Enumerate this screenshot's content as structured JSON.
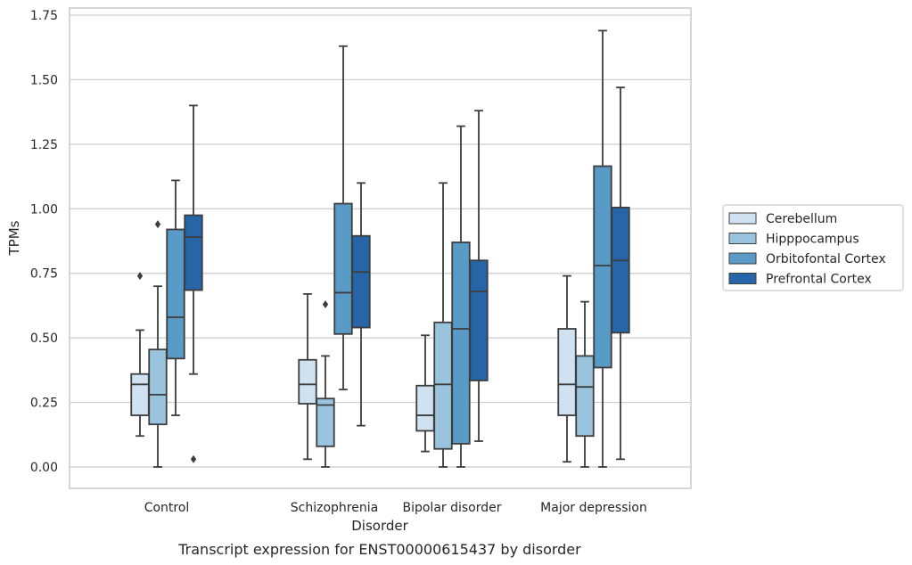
{
  "chart_data": {
    "type": "box",
    "xlabel": "Disorder",
    "ylabel": "TPMs",
    "caption": "Transcript expression for ENST00000615437 by disorder",
    "ylim": [
      -0.08,
      1.77
    ],
    "yticks": [
      "0.00",
      "0.25",
      "0.50",
      "0.75",
      "1.00",
      "1.25",
      "1.50",
      "1.75"
    ],
    "ytick_values": [
      0,
      0.25,
      0.5,
      0.75,
      1.0,
      1.25,
      1.5,
      1.75
    ],
    "grid": true,
    "legend_position": "right",
    "categories": [
      "Control",
      "Schizophrenia",
      "Bipolar disorder",
      "Major depression"
    ],
    "series": [
      {
        "name": "Cerebellum",
        "color": "#d0e1f2",
        "boxes": [
          {
            "whislo": 0.12,
            "q1": 0.2,
            "med": 0.32,
            "q3": 0.36,
            "whishi": 0.53,
            "fliers": [
              0.74
            ]
          },
          {
            "whislo": 0.03,
            "q1": 0.245,
            "med": 0.32,
            "q3": 0.415,
            "whishi": 0.67,
            "fliers": []
          },
          {
            "whislo": 0.06,
            "q1": 0.14,
            "med": 0.2,
            "q3": 0.315,
            "whishi": 0.51,
            "fliers": []
          },
          {
            "whislo": 0.02,
            "q1": 0.2,
            "med": 0.32,
            "q3": 0.535,
            "whishi": 0.74,
            "fliers": []
          }
        ]
      },
      {
        "name": "Hipppocampus",
        "color": "#9ac4de",
        "boxes": [
          {
            "whislo": 0.0,
            "q1": 0.165,
            "med": 0.28,
            "q3": 0.455,
            "whishi": 0.7,
            "fliers": [
              0.94
            ]
          },
          {
            "whislo": 0.0,
            "q1": 0.08,
            "med": 0.24,
            "q3": 0.265,
            "whishi": 0.43,
            "fliers": [
              0.63
            ]
          },
          {
            "whislo": 0.0,
            "q1": 0.07,
            "med": 0.32,
            "q3": 0.56,
            "whishi": 1.1,
            "fliers": []
          },
          {
            "whislo": 0.0,
            "q1": 0.12,
            "med": 0.31,
            "q3": 0.43,
            "whishi": 0.64,
            "fliers": []
          }
        ]
      },
      {
        "name": "Orbitofontal Cortex",
        "color": "#5a9ac6",
        "boxes": [
          {
            "whislo": 0.2,
            "q1": 0.42,
            "med": 0.58,
            "q3": 0.92,
            "whishi": 1.11,
            "fliers": []
          },
          {
            "whislo": 0.3,
            "q1": 0.515,
            "med": 0.675,
            "q3": 1.02,
            "whishi": 1.63,
            "fliers": []
          },
          {
            "whislo": 0.0,
            "q1": 0.09,
            "med": 0.535,
            "q3": 0.87,
            "whishi": 1.32,
            "fliers": []
          },
          {
            "whislo": 0.0,
            "q1": 0.385,
            "med": 0.78,
            "q3": 1.165,
            "whishi": 1.69,
            "fliers": []
          }
        ]
      },
      {
        "name": "Prefrontal Cortex",
        "color": "#2565a8",
        "boxes": [
          {
            "whislo": 0.36,
            "q1": 0.685,
            "med": 0.89,
            "q3": 0.975,
            "whishi": 1.4,
            "fliers": [
              0.03
            ]
          },
          {
            "whislo": 0.16,
            "q1": 0.54,
            "med": 0.755,
            "q3": 0.895,
            "whishi": 1.1,
            "fliers": []
          },
          {
            "whislo": 0.1,
            "q1": 0.335,
            "med": 0.68,
            "q3": 0.8,
            "whishi": 1.38,
            "fliers": []
          },
          {
            "whislo": 0.03,
            "q1": 0.52,
            "med": 0.8,
            "q3": 1.005,
            "whishi": 1.47,
            "fliers": []
          }
        ]
      }
    ]
  }
}
